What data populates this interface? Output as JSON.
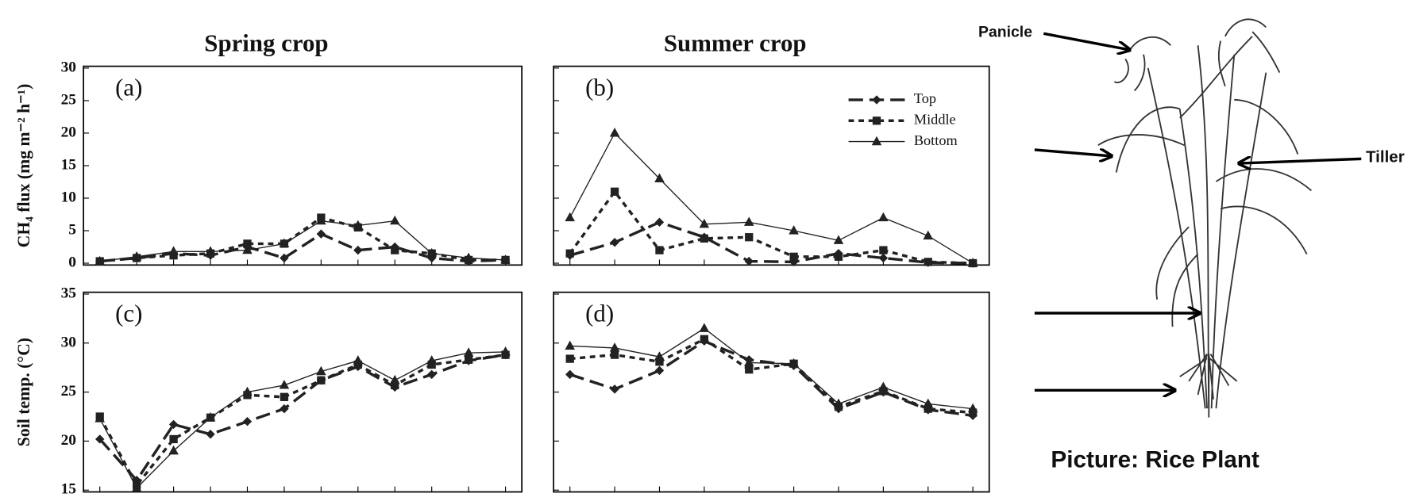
{
  "chart_data": [
    {
      "type": "line",
      "title": "Spring crop",
      "panel_label": "(a)",
      "ylabel": "CH₄ flux (mg m⁻² h⁻¹)",
      "categories": [
        null,
        null,
        null,
        null,
        null,
        null,
        null,
        null,
        null,
        null,
        null,
        null
      ],
      "ylim": [
        0,
        30
      ],
      "yticks": [
        0,
        5,
        10,
        15,
        20,
        25,
        30
      ],
      "tick_labels": true,
      "legend": false,
      "series": [
        {
          "name": "Top",
          "color": "#222222",
          "marker": "diamond",
          "line_style": "long-dash",
          "values": [
            0.3,
            0.8,
            1.5,
            1.2,
            2.5,
            0.8,
            4.5,
            2,
            2.5,
            0.8,
            0.3,
            0.5
          ]
        },
        {
          "name": "Middle",
          "color": "#222222",
          "marker": "square",
          "line_style": "short-dash",
          "values": [
            0.3,
            0.8,
            1.2,
            1.5,
            3,
            3,
            7,
            5.5,
            2,
            1.5,
            0.5,
            0.5
          ]
        },
        {
          "name": "Bottom",
          "color": "#222222",
          "marker": "triangle",
          "line_style": "solid",
          "values": [
            0.3,
            1,
            1.8,
            1.8,
            2,
            3,
            6.5,
            5.8,
            6.5,
            1.5,
            0.8,
            0.5
          ]
        }
      ]
    },
    {
      "type": "line",
      "title": "Summer crop",
      "panel_label": "(b)",
      "categories": [
        null,
        null,
        null,
        null,
        null,
        null,
        null,
        null,
        null,
        null
      ],
      "ylim": [
        0,
        30
      ],
      "yticks": [
        0,
        5,
        10,
        15,
        20,
        25,
        30
      ],
      "tick_labels": false,
      "legend": true,
      "series": [
        {
          "name": "Top",
          "color": "#222222",
          "marker": "diamond",
          "line_style": "long-dash",
          "values": [
            1.2,
            3.2,
            6.3,
            4,
            0.3,
            0.2,
            1.5,
            0.8,
            0.1,
            0
          ]
        },
        {
          "name": "Middle",
          "color": "#222222",
          "marker": "square",
          "line_style": "short-dash",
          "values": [
            1.5,
            11,
            2,
            3.8,
            4,
            1,
            1,
            2,
            0.2,
            0
          ]
        },
        {
          "name": "Bottom",
          "color": "#222222",
          "marker": "triangle",
          "line_style": "solid",
          "values": [
            7,
            20,
            13,
            6,
            6.3,
            5,
            3.5,
            7,
            4.2,
            0
          ]
        }
      ]
    },
    {
      "type": "line",
      "panel_label": "(c)",
      "ylabel": "Soil temp. (°C)",
      "categories": [
        null,
        null,
        null,
        null,
        null,
        null,
        null,
        null,
        null,
        null,
        null,
        null
      ],
      "ylim": [
        15,
        35
      ],
      "yticks": [
        15,
        20,
        25,
        30,
        35
      ],
      "tick_labels": true,
      "legend": false,
      "series": [
        {
          "name": "Top",
          "color": "#222222",
          "marker": "diamond",
          "line_style": "long-dash",
          "values": [
            20.2,
            16,
            21.7,
            20.7,
            22,
            23.3,
            26.2,
            27.6,
            25.5,
            26.8,
            28.2,
            28.8
          ]
        },
        {
          "name": "Middle",
          "color": "#222222",
          "marker": "square",
          "line_style": "short-dash",
          "values": [
            22.5,
            15.5,
            20.2,
            22.4,
            24.7,
            24.5,
            26.2,
            27.8,
            25.7,
            27.8,
            28.3,
            28.8
          ]
        },
        {
          "name": "Bottom",
          "color": "#222222",
          "marker": "triangle",
          "line_style": "solid",
          "values": [
            22.3,
            15.2,
            19,
            22.4,
            25,
            25.7,
            27.1,
            28.2,
            26.2,
            28.2,
            29,
            29.1
          ]
        }
      ]
    },
    {
      "type": "line",
      "panel_label": "(d)",
      "categories": [
        null,
        null,
        null,
        null,
        null,
        null,
        null,
        null,
        null,
        null
      ],
      "ylim": [
        15,
        35
      ],
      "yticks": [
        15,
        20,
        25,
        30,
        35
      ],
      "tick_labels": false,
      "legend": false,
      "series": [
        {
          "name": "Top",
          "color": "#222222",
          "marker": "diamond",
          "line_style": "long-dash",
          "values": [
            26.8,
            25.3,
            27.2,
            30.2,
            28.3,
            27.7,
            23.3,
            25,
            23.2,
            22.6
          ]
        },
        {
          "name": "Middle",
          "color": "#222222",
          "marker": "square",
          "line_style": "short-dash",
          "values": [
            28.4,
            28.8,
            28.1,
            30.4,
            27.3,
            27.9,
            23.5,
            25.1,
            23.3,
            22.9
          ]
        },
        {
          "name": "Bottom",
          "color": "#222222",
          "marker": "triangle",
          "line_style": "solid",
          "values": [
            29.7,
            29.5,
            28.6,
            31.5,
            28,
            27.9,
            23.8,
            25.5,
            23.8,
            23.3
          ]
        }
      ]
    }
  ],
  "figure": {
    "labels": [
      "Panicle",
      "Tiller"
    ],
    "caption": "Picture: Rice Plant"
  }
}
